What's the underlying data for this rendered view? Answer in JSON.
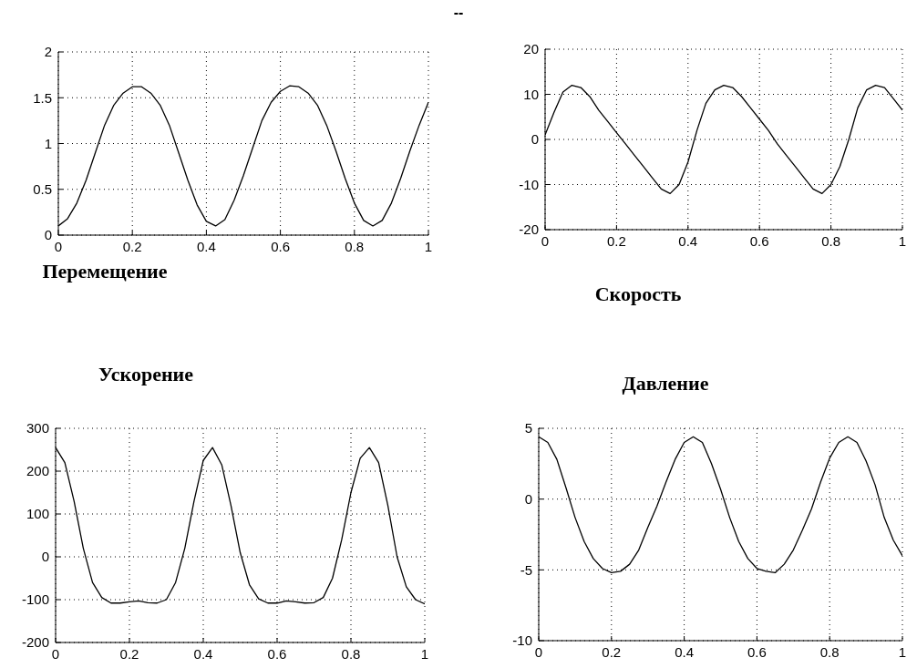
{
  "chart_data": [
    {
      "type": "line",
      "title": "Перемещение",
      "annotations": [
        "--"
      ],
      "x": [
        0,
        0.025,
        0.05,
        0.075,
        0.1,
        0.125,
        0.15,
        0.175,
        0.2,
        0.225,
        0.25,
        0.275,
        0.3,
        0.325,
        0.35,
        0.375,
        0.4,
        0.425,
        0.45,
        0.475,
        0.5,
        0.525,
        0.55,
        0.575,
        0.6,
        0.625,
        0.65,
        0.675,
        0.7,
        0.725,
        0.75,
        0.775,
        0.8,
        0.825,
        0.85,
        0.875,
        0.9,
        0.925,
        0.95,
        0.975,
        1
      ],
      "color": "#000000",
      "values": [
        0.1,
        0.18,
        0.35,
        0.6,
        0.9,
        1.2,
        1.42,
        1.55,
        1.62,
        1.62,
        1.55,
        1.42,
        1.2,
        0.9,
        0.6,
        0.33,
        0.15,
        0.1,
        0.17,
        0.38,
        0.65,
        0.95,
        1.25,
        1.45,
        1.57,
        1.63,
        1.62,
        1.55,
        1.42,
        1.2,
        0.92,
        0.62,
        0.35,
        0.16,
        0.1,
        0.16,
        0.35,
        0.62,
        0.92,
        1.2,
        1.45
      ],
      "xlim": [
        0,
        1
      ],
      "xticks": [
        0,
        0.2,
        0.4,
        0.6,
        0.8,
        1
      ],
      "ylim": [
        0,
        2
      ],
      "yticks": [
        0,
        0.5,
        1,
        1.5,
        2
      ],
      "grid": true
    },
    {
      "type": "line",
      "title": "Скорость",
      "x": [
        0,
        0.025,
        0.05,
        0.075,
        0.1,
        0.125,
        0.15,
        0.175,
        0.2,
        0.225,
        0.25,
        0.275,
        0.3,
        0.325,
        0.35,
        0.375,
        0.4,
        0.425,
        0.45,
        0.475,
        0.5,
        0.525,
        0.55,
        0.575,
        0.6,
        0.625,
        0.65,
        0.675,
        0.7,
        0.725,
        0.75,
        0.775,
        0.8,
        0.825,
        0.85,
        0.875,
        0.9,
        0.925,
        0.95,
        0.975,
        1
      ],
      "color": "#000000",
      "values": [
        1,
        6,
        10.5,
        12,
        11.5,
        9.5,
        6.5,
        4,
        1.5,
        -1,
        -3.5,
        -6,
        -8.5,
        -11,
        -12,
        -10,
        -5,
        2,
        8,
        11,
        12,
        11.5,
        9.5,
        7,
        4.5,
        2,
        -1,
        -3.5,
        -6,
        -8.5,
        -11,
        -12,
        -10,
        -6,
        0,
        7,
        11,
        12,
        11.5,
        9,
        6.5
      ],
      "xlim": [
        0,
        1
      ],
      "xticks": [
        0,
        0.2,
        0.4,
        0.6,
        0.8,
        1
      ],
      "ylim": [
        -20,
        20
      ],
      "yticks": [
        -20,
        -10,
        0,
        10,
        20
      ],
      "grid": true
    },
    {
      "type": "line",
      "title": "Ускорение",
      "x": [
        0,
        0.025,
        0.05,
        0.075,
        0.1,
        0.125,
        0.15,
        0.175,
        0.2,
        0.225,
        0.25,
        0.275,
        0.3,
        0.325,
        0.35,
        0.375,
        0.4,
        0.425,
        0.45,
        0.475,
        0.5,
        0.525,
        0.55,
        0.575,
        0.6,
        0.625,
        0.65,
        0.675,
        0.7,
        0.725,
        0.75,
        0.775,
        0.8,
        0.825,
        0.85,
        0.875,
        0.9,
        0.925,
        0.95,
        0.975,
        1
      ],
      "color": "#000000",
      "values": [
        255,
        220,
        130,
        20,
        -60,
        -95,
        -108,
        -108,
        -105,
        -103,
        -107,
        -108,
        -100,
        -60,
        20,
        130,
        225,
        255,
        215,
        120,
        10,
        -65,
        -98,
        -108,
        -108,
        -103,
        -105,
        -108,
        -107,
        -95,
        -50,
        40,
        150,
        230,
        255,
        220,
        120,
        0,
        -70,
        -100,
        -110
      ],
      "xlim": [
        0,
        1
      ],
      "xticks": [
        0,
        0.2,
        0.4,
        0.6,
        0.8,
        1
      ],
      "ylim": [
        -200,
        300
      ],
      "yticks": [
        -200,
        -100,
        0,
        100,
        200,
        300
      ],
      "grid": true
    },
    {
      "type": "line",
      "title": "Давление",
      "x": [
        0,
        0.025,
        0.05,
        0.075,
        0.1,
        0.125,
        0.15,
        0.175,
        0.2,
        0.225,
        0.25,
        0.275,
        0.3,
        0.325,
        0.35,
        0.375,
        0.4,
        0.425,
        0.45,
        0.475,
        0.5,
        0.525,
        0.55,
        0.575,
        0.6,
        0.625,
        0.65,
        0.675,
        0.7,
        0.725,
        0.75,
        0.775,
        0.8,
        0.825,
        0.85,
        0.875,
        0.9,
        0.925,
        0.95,
        0.975,
        1
      ],
      "color": "#000000",
      "values": [
        4.4,
        4.0,
        2.8,
        0.8,
        -1.3,
        -3.0,
        -4.2,
        -4.9,
        -5.2,
        -5.1,
        -4.6,
        -3.6,
        -2.0,
        -0.5,
        1.2,
        2.8,
        4.0,
        4.4,
        4.0,
        2.5,
        0.7,
        -1.3,
        -3.0,
        -4.2,
        -4.9,
        -5.1,
        -5.2,
        -4.6,
        -3.6,
        -2.2,
        -0.7,
        1.2,
        2.9,
        4.0,
        4.4,
        4.0,
        2.7,
        1.0,
        -1.3,
        -2.9,
        -4.0
      ],
      "xlim": [
        0,
        1
      ],
      "xticks": [
        0,
        0.2,
        0.4,
        0.6,
        0.8,
        1
      ],
      "ylim": [
        -10,
        5
      ],
      "yticks": [
        -10,
        -5,
        0,
        5
      ],
      "grid": true
    }
  ]
}
